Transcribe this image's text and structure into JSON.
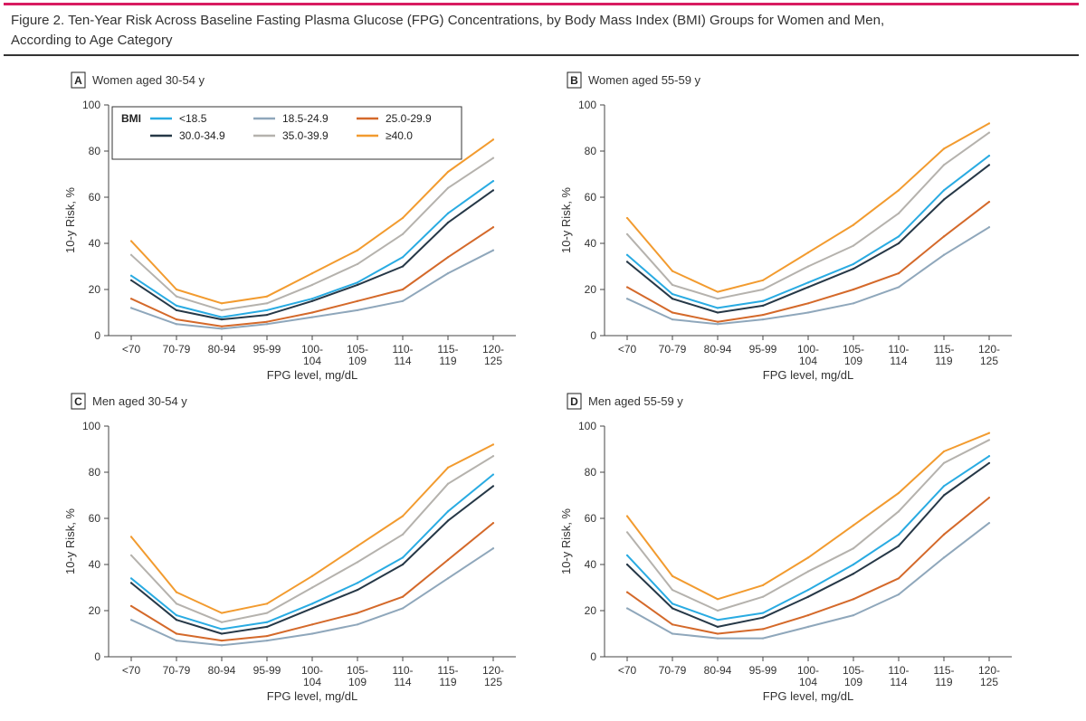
{
  "figure": {
    "title_line1": "Figure 2. Ten-Year Risk Across Baseline Fasting Plasma Glucose (FPG) Concentrations, by Body Mass Index (BMI) Groups for Women and Men,",
    "title_line2": "According to Age Category",
    "rule_color": "#d81b60"
  },
  "legend": {
    "title": "BMI",
    "placement": "top-left of panel A"
  },
  "series_styles": [
    {
      "name": "<18.5",
      "color": "#29abe2"
    },
    {
      "name": "18.5-24.9",
      "color": "#8fa7bb"
    },
    {
      "name": "25.0-29.9",
      "color": "#d4692a"
    },
    {
      "name": "30.0-34.9",
      "color": "#263847"
    },
    {
      "name": "35.0-39.9",
      "color": "#b5b2ad"
    },
    {
      "name": "≥40.0",
      "color": "#f29b2f"
    }
  ],
  "chart_data": [
    {
      "type": "line",
      "panel_letter": "A",
      "title": "Women aged 30-54 y",
      "xlabel": "FPG level, mg/dL",
      "ylabel": "10-y Risk, %",
      "ylim": [
        0,
        100
      ],
      "yticks": [
        0,
        20,
        40,
        60,
        80,
        100
      ],
      "categories": [
        [
          "<70"
        ],
        [
          "70-79"
        ],
        [
          "80-94"
        ],
        [
          "95-99"
        ],
        [
          "100-",
          "104"
        ],
        [
          "105-",
          "109"
        ],
        [
          "110-",
          "114"
        ],
        [
          "115-",
          "119"
        ],
        [
          "120-",
          "125"
        ]
      ],
      "grid": false,
      "series": [
        {
          "name": "<18.5",
          "values": [
            26,
            13,
            8,
            11,
            16,
            23,
            34,
            53,
            67
          ]
        },
        {
          "name": "18.5-24.9",
          "values": [
            12,
            5,
            3,
            5,
            8,
            11,
            15,
            27,
            37
          ]
        },
        {
          "name": "25.0-29.9",
          "values": [
            16,
            7,
            4,
            6,
            10,
            15,
            20,
            34,
            47
          ]
        },
        {
          "name": "30.0-34.9",
          "values": [
            24,
            11,
            7,
            9,
            15,
            22,
            30,
            49,
            63
          ]
        },
        {
          "name": "35.0-39.9",
          "values": [
            35,
            17,
            11,
            14,
            22,
            31,
            44,
            64,
            77
          ]
        },
        {
          "name": "≥40.0",
          "values": [
            41,
            20,
            14,
            17,
            27,
            37,
            51,
            71,
            85
          ]
        }
      ]
    },
    {
      "type": "line",
      "panel_letter": "B",
      "title": "Women aged 55-59 y",
      "xlabel": "FPG level, mg/dL",
      "ylabel": "10-y Risk, %",
      "ylim": [
        0,
        100
      ],
      "yticks": [
        0,
        20,
        40,
        60,
        80,
        100
      ],
      "categories": [
        [
          "<70"
        ],
        [
          "70-79"
        ],
        [
          "80-94"
        ],
        [
          "95-99"
        ],
        [
          "100-",
          "104"
        ],
        [
          "105-",
          "109"
        ],
        [
          "110-",
          "114"
        ],
        [
          "115-",
          "119"
        ],
        [
          "120-",
          "125"
        ]
      ],
      "grid": false,
      "series": [
        {
          "name": "<18.5",
          "values": [
            35,
            18,
            12,
            15,
            23,
            31,
            43,
            63,
            78
          ]
        },
        {
          "name": "18.5-24.9",
          "values": [
            16,
            7,
            5,
            7,
            10,
            14,
            21,
            35,
            47
          ]
        },
        {
          "name": "25.0-29.9",
          "values": [
            21,
            10,
            6,
            9,
            14,
            20,
            27,
            43,
            58
          ]
        },
        {
          "name": "30.0-34.9",
          "values": [
            32,
            16,
            10,
            13,
            21,
            29,
            40,
            59,
            74
          ]
        },
        {
          "name": "35.0-39.9",
          "values": [
            44,
            22,
            16,
            20,
            30,
            39,
            53,
            74,
            88
          ]
        },
        {
          "name": "≥40.0",
          "values": [
            51,
            28,
            19,
            24,
            36,
            48,
            63,
            81,
            92
          ]
        }
      ]
    },
    {
      "type": "line",
      "panel_letter": "C",
      "title": "Men aged 30-54 y",
      "xlabel": "FPG level, mg/dL",
      "ylabel": "10-y Risk, %",
      "ylim": [
        0,
        100
      ],
      "yticks": [
        0,
        20,
        40,
        60,
        80,
        100
      ],
      "categories": [
        [
          "<70"
        ],
        [
          "70-79"
        ],
        [
          "80-94"
        ],
        [
          "95-99"
        ],
        [
          "100-",
          "104"
        ],
        [
          "105-",
          "109"
        ],
        [
          "110-",
          "114"
        ],
        [
          "115-",
          "119"
        ],
        [
          "120-",
          "125"
        ]
      ],
      "grid": false,
      "series": [
        {
          "name": "<18.5",
          "values": [
            34,
            18,
            12,
            15,
            23,
            32,
            43,
            63,
            79
          ]
        },
        {
          "name": "18.5-24.9",
          "values": [
            16,
            7,
            5,
            7,
            10,
            14,
            21,
            34,
            47
          ]
        },
        {
          "name": "25.0-29.9",
          "values": [
            22,
            10,
            7,
            9,
            14,
            19,
            26,
            42,
            58
          ]
        },
        {
          "name": "30.0-34.9",
          "values": [
            32,
            16,
            10,
            13,
            21,
            29,
            40,
            59,
            74
          ]
        },
        {
          "name": "35.0-39.9",
          "values": [
            44,
            23,
            15,
            19,
            30,
            41,
            53,
            75,
            87
          ]
        },
        {
          "name": "≥40.0",
          "values": [
            52,
            28,
            19,
            23,
            35,
            48,
            61,
            82,
            92
          ]
        }
      ]
    },
    {
      "type": "line",
      "panel_letter": "D",
      "title": "Men aged 55-59 y",
      "xlabel": "FPG level, mg/dL",
      "ylabel": "10-y Risk, %",
      "ylim": [
        0,
        100
      ],
      "yticks": [
        0,
        20,
        40,
        60,
        80,
        100
      ],
      "categories": [
        [
          "<70"
        ],
        [
          "70-79"
        ],
        [
          "80-94"
        ],
        [
          "95-99"
        ],
        [
          "100-",
          "104"
        ],
        [
          "105-",
          "109"
        ],
        [
          "110-",
          "114"
        ],
        [
          "115-",
          "119"
        ],
        [
          "120-",
          "125"
        ]
      ],
      "grid": false,
      "series": [
        {
          "name": "<18.5",
          "values": [
            44,
            23,
            16,
            19,
            29,
            40,
            53,
            74,
            87
          ]
        },
        {
          "name": "18.5-24.9",
          "values": [
            21,
            10,
            8,
            8,
            13,
            18,
            27,
            43,
            58
          ]
        },
        {
          "name": "25.0-29.9",
          "values": [
            28,
            14,
            10,
            12,
            18,
            25,
            34,
            53,
            69
          ]
        },
        {
          "name": "30.0-34.9",
          "values": [
            40,
            21,
            13,
            17,
            26,
            36,
            48,
            70,
            84
          ]
        },
        {
          "name": "35.0-39.9",
          "values": [
            54,
            29,
            20,
            26,
            37,
            47,
            63,
            84,
            94
          ]
        },
        {
          "name": "≥40.0",
          "values": [
            61,
            35,
            25,
            31,
            43,
            57,
            71,
            89,
            97
          ]
        }
      ]
    }
  ]
}
